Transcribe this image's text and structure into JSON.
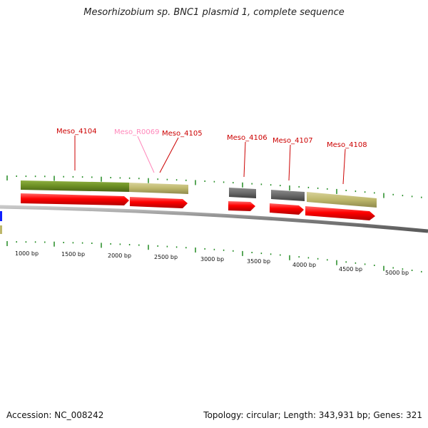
{
  "title": "Mesorhizobium sp. BNC1 plasmid 1, complete sequence",
  "footer": {
    "accession": "Accession: NC_008242",
    "summary": "Topology: circular; Length: 343,931 bp; Genes: 321"
  },
  "colors": {
    "cds": "#ff0000",
    "gene_olive": "#6b8e23",
    "gene_khaki": "#bdb76b",
    "gene_gray": "#696969",
    "rna_label": "#ff88bb",
    "gene_label": "#cc0000",
    "backbone": "#888888",
    "tick": "#228b22"
  },
  "gene_labels": [
    {
      "id": "Meso_4104",
      "text": "Meso_4104",
      "type": "gene"
    },
    {
      "id": "Meso_R0069",
      "text": "Meso_R0069",
      "type": "rna"
    },
    {
      "id": "Meso_4105",
      "text": "Meso_4105",
      "type": "gene"
    },
    {
      "id": "Meso_4106",
      "text": "Meso_4106",
      "type": "gene"
    },
    {
      "id": "Meso_4107",
      "text": "Meso_4107",
      "type": "gene"
    },
    {
      "id": "Meso_4108",
      "text": "Meso_4108",
      "type": "gene"
    }
  ],
  "bp_labels": [
    "1000 bp",
    "1500 bp",
    "2000 bp",
    "2500 bp",
    "3000 bp",
    "3500 bp",
    "4000 bp",
    "4500 bp",
    "5000 bp"
  ]
}
